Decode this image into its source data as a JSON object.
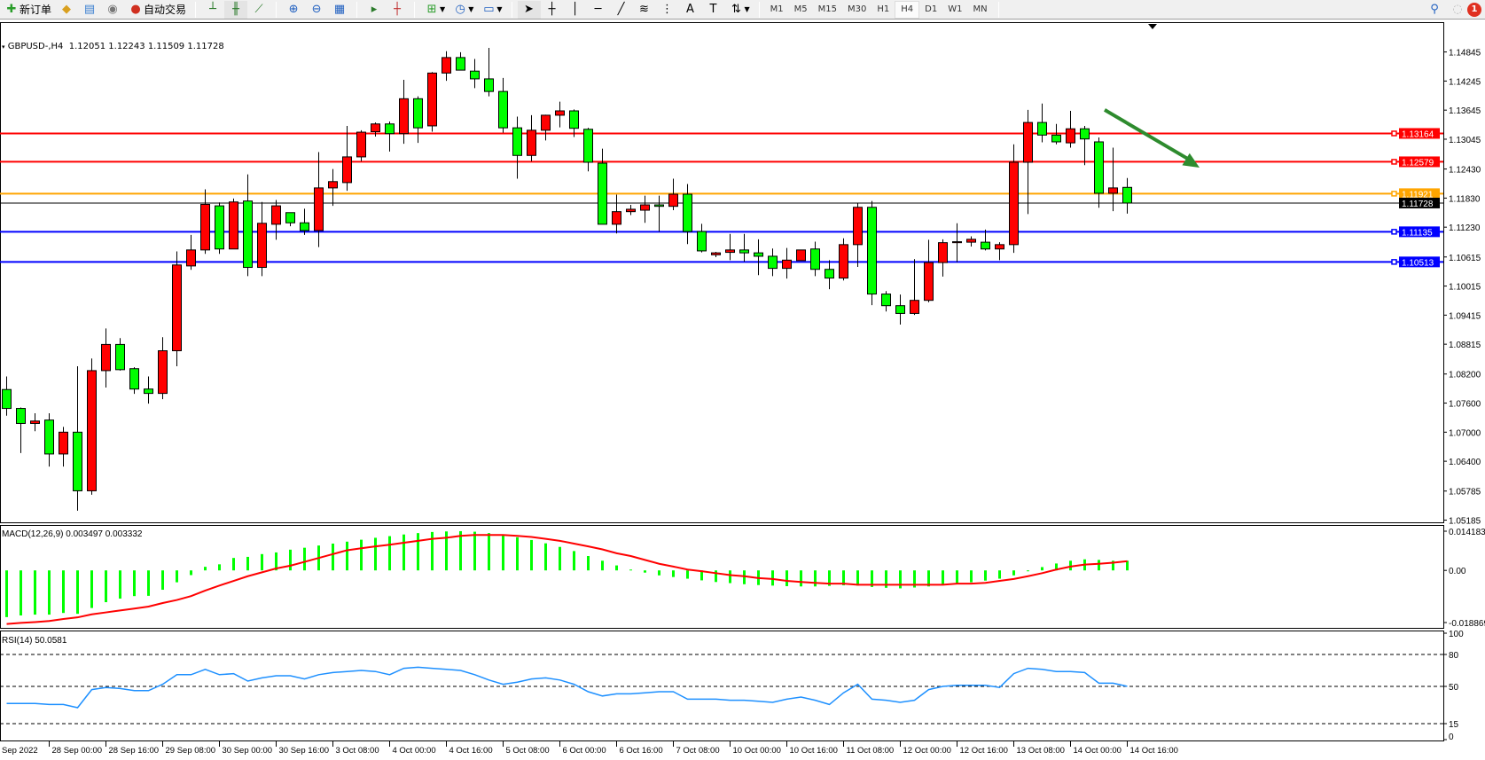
{
  "toolbar": {
    "new_order": "新订单",
    "auto_trading": "自动交易",
    "timeframes": [
      "M1",
      "M5",
      "M15",
      "M30",
      "H1",
      "H4",
      "D1",
      "W1",
      "MN"
    ],
    "active_timeframe": "H4",
    "notification_count": "1",
    "icons": [
      "new-order-icon",
      "market-watch-icon",
      "navigator-icon",
      "signals-icon",
      "auto-trading-icon",
      "bar-chart-icon",
      "candlestick-icon",
      "line-chart-icon",
      "zoom-in-icon",
      "zoom-out-icon",
      "tile-windows-icon",
      "chart-shift-icon",
      "autoscroll-icon",
      "indicators-icon",
      "periods-icon",
      "templates-icon",
      "cursor-icon",
      "crosshair-icon",
      "vertical-line-icon",
      "horizontal-line-icon",
      "trendline-icon",
      "fibonacci-icon",
      "fibo-fan-icon",
      "text-icon",
      "text-label-icon",
      "arrows-icon",
      "search-icon",
      "notification-icon"
    ]
  },
  "chart": {
    "title": "GBPUSD-,H4",
    "ohlc_text": "1.12051 1.12243 1.11509 1.11728"
  },
  "chart_data": [
    {
      "type": "candlestick",
      "symbol": "GBPUSD-",
      "timeframe": "H4",
      "bull_color": "#ff0000",
      "bear_color": "#00ff00",
      "price_ticks": [
        "1.14845",
        "1.14245",
        "1.13645",
        "1.13045",
        "1.12430",
        "1.11830",
        "1.11230",
        "1.10615",
        "1.10015",
        "1.09415",
        "1.08815",
        "1.08200",
        "1.07600",
        "1.07000",
        "1.06400",
        "1.05785",
        "1.05185"
      ],
      "time_labels": [
        "Sep 2022",
        "28 Sep 00:00",
        "28 Sep 16:00",
        "29 Sep 08:00",
        "30 Sep 00:00",
        "30 Sep 16:00",
        "3 Oct 08:00",
        "4 Oct 00:00",
        "4 Oct 16:00",
        "5 Oct 08:00",
        "6 Oct 00:00",
        "6 Oct 16:00",
        "7 Oct 08:00",
        "10 Oct 00:00",
        "10 Oct 16:00",
        "11 Oct 08:00",
        "12 Oct 00:00",
        "12 Oct 16:00",
        "13 Oct 08:00",
        "14 Oct 00:00",
        "14 Oct 16:00"
      ],
      "ohlc": [
        [
          1.0788,
          1.0815,
          1.0734,
          1.0749
        ],
        [
          1.0749,
          1.0751,
          1.0657,
          1.0718
        ],
        [
          1.0718,
          1.0739,
          1.0702,
          1.0723
        ],
        [
          1.0725,
          1.0739,
          1.0629,
          1.0655
        ],
        [
          1.0655,
          1.0711,
          1.0629,
          1.07
        ],
        [
          1.07,
          1.0836,
          1.0538,
          1.0579
        ],
        [
          1.0579,
          1.0852,
          1.0571,
          1.0827
        ],
        [
          1.0827,
          1.0914,
          1.0792,
          1.0881
        ],
        [
          1.0881,
          1.0894,
          1.0827,
          1.0829
        ],
        [
          1.0831,
          1.0834,
          1.0779,
          1.0789
        ],
        [
          1.0789,
          1.0815,
          1.0759,
          1.078
        ],
        [
          1.078,
          1.0896,
          1.0768,
          1.0868
        ],
        [
          1.0868,
          1.1073,
          1.0836,
          1.1045
        ],
        [
          1.1043,
          1.1107,
          1.1035,
          1.1076
        ],
        [
          1.1076,
          1.1201,
          1.1068,
          1.117
        ],
        [
          1.1167,
          1.1174,
          1.1068,
          1.1078
        ],
        [
          1.1078,
          1.1182,
          1.1078,
          1.1175
        ],
        [
          1.1177,
          1.1232,
          1.1022,
          1.104
        ],
        [
          1.104,
          1.1175,
          1.1022,
          1.1131
        ],
        [
          1.1129,
          1.1179,
          1.1097,
          1.1167
        ],
        [
          1.1153,
          1.1153,
          1.1125,
          1.1132
        ],
        [
          1.1132,
          1.1161,
          1.1107,
          1.1116
        ],
        [
          1.1116,
          1.1278,
          1.1082,
          1.1204
        ],
        [
          1.1204,
          1.1243,
          1.1167,
          1.1217
        ],
        [
          1.1215,
          1.1332,
          1.1198,
          1.1268
        ],
        [
          1.1268,
          1.1323,
          1.1259,
          1.1319
        ],
        [
          1.132,
          1.1339,
          1.131,
          1.1336
        ],
        [
          1.1336,
          1.1341,
          1.1279,
          1.1316
        ],
        [
          1.1316,
          1.1427,
          1.1295,
          1.1388
        ],
        [
          1.1388,
          1.1393,
          1.1297,
          1.1328
        ],
        [
          1.1332,
          1.1443,
          1.132,
          1.1441
        ],
        [
          1.1441,
          1.1486,
          1.1425,
          1.1473
        ],
        [
          1.1473,
          1.1484,
          1.1447,
          1.1447
        ],
        [
          1.1445,
          1.147,
          1.141,
          1.1429
        ],
        [
          1.1429,
          1.1493,
          1.1393,
          1.1403
        ],
        [
          1.1403,
          1.1431,
          1.1318,
          1.1328
        ],
        [
          1.1328,
          1.1351,
          1.1223,
          1.1271
        ],
        [
          1.1271,
          1.1354,
          1.1259,
          1.1323
        ],
        [
          1.1323,
          1.1355,
          1.1302,
          1.1354
        ],
        [
          1.1354,
          1.1382,
          1.1329,
          1.1363
        ],
        [
          1.1363,
          1.1366,
          1.1309,
          1.1327
        ],
        [
          1.1325,
          1.1328,
          1.1238,
          1.1257
        ],
        [
          1.1255,
          1.1285,
          1.1129,
          1.1129
        ],
        [
          1.1129,
          1.119,
          1.111,
          1.1155
        ],
        [
          1.1155,
          1.1169,
          1.1148,
          1.116
        ],
        [
          1.1158,
          1.1188,
          1.1132,
          1.1169
        ],
        [
          1.1169,
          1.1188,
          1.1114,
          1.1166
        ],
        [
          1.1166,
          1.1223,
          1.1158,
          1.1191
        ],
        [
          1.1191,
          1.1212,
          1.1088,
          1.1114
        ],
        [
          1.1114,
          1.113,
          1.1071,
          1.1074
        ],
        [
          1.1066,
          1.1072,
          1.1061,
          1.107
        ],
        [
          1.1071,
          1.1109,
          1.1055,
          1.1076
        ],
        [
          1.1076,
          1.1109,
          1.1052,
          1.107
        ],
        [
          1.107,
          1.1098,
          1.1024,
          1.1063
        ],
        [
          1.1063,
          1.1079,
          1.1022,
          1.1038
        ],
        [
          1.1038,
          1.108,
          1.1017,
          1.1055
        ],
        [
          1.1054,
          1.1076,
          1.1054,
          1.1076
        ],
        [
          1.1078,
          1.1093,
          1.1022,
          1.1036
        ],
        [
          1.1036,
          1.1055,
          1.0995,
          1.1018
        ],
        [
          1.1018,
          1.11,
          1.1013,
          1.1087
        ],
        [
          1.1087,
          1.1173,
          1.1041,
          1.1164
        ],
        [
          1.1164,
          1.1177,
          1.0962,
          1.0985
        ],
        [
          1.0985,
          1.0991,
          1.0949,
          1.0961
        ],
        [
          1.0961,
          1.0984,
          1.0922,
          1.0945
        ],
        [
          1.0945,
          1.1057,
          1.0942,
          1.0972
        ],
        [
          1.0972,
          1.1097,
          1.0968,
          1.105
        ],
        [
          1.105,
          1.1098,
          1.1021,
          1.1091
        ],
        [
          1.1091,
          1.1131,
          1.1051,
          1.1093
        ],
        [
          1.1092,
          1.1104,
          1.1083,
          1.1098
        ],
        [
          1.1092,
          1.1118,
          1.1075,
          1.1078
        ],
        [
          1.1078,
          1.1092,
          1.1055,
          1.1087
        ],
        [
          1.1087,
          1.1294,
          1.107,
          1.1257
        ],
        [
          1.1257,
          1.1365,
          1.115,
          1.1339
        ],
        [
          1.1339,
          1.1378,
          1.1298,
          1.1313
        ],
        [
          1.1313,
          1.1336,
          1.1294,
          1.1299
        ],
        [
          1.1297,
          1.1363,
          1.1287,
          1.1326
        ],
        [
          1.1326,
          1.1332,
          1.1251,
          1.1305
        ],
        [
          1.1299,
          1.1308,
          1.1163,
          1.1193
        ],
        [
          1.1193,
          1.1287,
          1.1156,
          1.1204
        ],
        [
          1.12051,
          1.12243,
          1.11509,
          1.11728
        ]
      ],
      "horizontal_lines": [
        {
          "price": "1.13164",
          "color": "#ff0000"
        },
        {
          "price": "1.12579",
          "color": "#ff0000"
        },
        {
          "price": "1.11921",
          "color": "#ffa500"
        },
        {
          "price": "1.11135",
          "color": "#0000ff"
        },
        {
          "price": "1.10513",
          "color": "#0000ff"
        }
      ],
      "bid": {
        "price": "1.11728",
        "color": "#000000"
      },
      "arrow": {
        "direction": "down-right",
        "color": "#2e8b2e",
        "from_price": 1.1365,
        "to_price": 1.1246
      }
    },
    {
      "type": "bar+line",
      "title": "MACD(12,26,9) 0.003497 0.003332",
      "ylim": [
        -0.018869,
        0.014183
      ],
      "ticks": [
        "0.014183",
        "0.00",
        "-0.018869"
      ],
      "histogram_color": "#00ff00",
      "signal_color": "#ff0000",
      "histogram": [
        -0.0169,
        -0.0163,
        -0.016,
        -0.016,
        -0.0154,
        -0.0157,
        -0.0136,
        -0.0115,
        -0.0102,
        -0.0093,
        -0.0092,
        -0.007,
        -0.0043,
        -0.0017,
        0.0013,
        0.0022,
        0.0045,
        0.0049,
        0.0059,
        0.0065,
        0.0075,
        0.0082,
        0.009,
        0.0097,
        0.0104,
        0.0111,
        0.0118,
        0.0124,
        0.013,
        0.0135,
        0.0139,
        0.0141,
        0.0142,
        0.014,
        0.0135,
        0.0128,
        0.012,
        0.011,
        0.0098,
        0.0085,
        0.007,
        0.0052,
        0.0035,
        0.0018,
        0.0003,
        -0.0008,
        -0.0018,
        -0.0024,
        -0.003,
        -0.0036,
        -0.0042,
        -0.0046,
        -0.005,
        -0.0053,
        -0.0055,
        -0.0057,
        -0.0058,
        -0.0058,
        -0.0056,
        -0.0054,
        -0.0055,
        -0.006,
        -0.0063,
        -0.0065,
        -0.0062,
        -0.0058,
        -0.0053,
        -0.0048,
        -0.0043,
        -0.0037,
        -0.003,
        -0.0018,
        -0.0003,
        0.0012,
        0.0025,
        0.0035,
        0.004,
        0.0038,
        0.0035,
        0.003497
      ],
      "signal": [
        -0.0194,
        -0.019,
        -0.0187,
        -0.0183,
        -0.0176,
        -0.017,
        -0.0159,
        -0.0152,
        -0.0145,
        -0.0138,
        -0.0131,
        -0.0118,
        -0.0107,
        -0.0093,
        -0.0073,
        -0.0055,
        -0.0038,
        -0.0021,
        -0.0007,
        0.0007,
        0.0017,
        0.0031,
        0.0045,
        0.0059,
        0.0073,
        0.008,
        0.0087,
        0.0093,
        0.01,
        0.0107,
        0.0114,
        0.0118,
        0.0125,
        0.0128,
        0.0128,
        0.0128,
        0.0125,
        0.0121,
        0.0114,
        0.0107,
        0.0097,
        0.0087,
        0.0076,
        0.0062,
        0.0052,
        0.0038,
        0.0024,
        0.0014,
        0.0003,
        -0.0003,
        -0.001,
        -0.0017,
        -0.0021,
        -0.0028,
        -0.0031,
        -0.0038,
        -0.0042,
        -0.0045,
        -0.0048,
        -0.0048,
        -0.0052,
        -0.0052,
        -0.0052,
        -0.0052,
        -0.0052,
        -0.0052,
        -0.0052,
        -0.0048,
        -0.0048,
        -0.0045,
        -0.0038,
        -0.0031,
        -0.0021,
        -0.001,
        0.0003,
        0.0014,
        0.0021,
        0.0024,
        0.0028,
        0.003332
      ]
    },
    {
      "type": "line",
      "title": "RSI(14) 50.0581",
      "ylim": [
        0,
        100
      ],
      "ticks": [
        "100",
        "80",
        "50",
        "15",
        "0"
      ],
      "levels": [
        80,
        50,
        15
      ],
      "color": "#1e90ff",
      "values": [
        34,
        34,
        34,
        33,
        33,
        30,
        47,
        49,
        48,
        46,
        46,
        52,
        61,
        61,
        66,
        61,
        62,
        55,
        58,
        60,
        60,
        57,
        61,
        63,
        64,
        65,
        64,
        61,
        67,
        68,
        67,
        66,
        65,
        61,
        56,
        52,
        54,
        57,
        58,
        56,
        52,
        45,
        41,
        43,
        43,
        44,
        45,
        45,
        38,
        38,
        38,
        37,
        37,
        36,
        35,
        38,
        40,
        37,
        33,
        44,
        52,
        38,
        37,
        35,
        37,
        47,
        50,
        51,
        51,
        51,
        49,
        62,
        67,
        66,
        64,
        64,
        63,
        53,
        53,
        50.0581
      ]
    }
  ]
}
